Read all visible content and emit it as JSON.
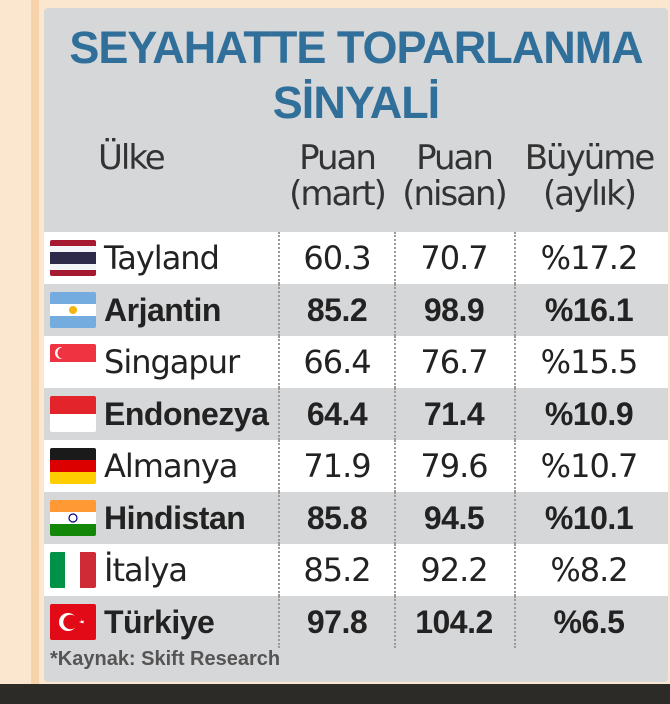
{
  "title_line1": "SEYAHATTE TOPARLANMA",
  "title_line2": "SİNYALİ",
  "headers": {
    "country": "Ülke",
    "col1_line1": "Puan",
    "col1_line2": "(mart)",
    "col2_line1": "Puan",
    "col2_line2": "(nisan)",
    "col3_line1": "Büyüme",
    "col3_line2": "(aylık)"
  },
  "source": "*Kaynak: Skift Research",
  "colors": {
    "title": "#2f6f99",
    "card": "#d6d7d9",
    "row_white": "#ffffff",
    "background": "#fbe7cf"
  },
  "chart_data": {
    "type": "table",
    "title": "SEYAHATTE TOPARLANMA SİNYALİ",
    "columns": [
      "Ülke",
      "Puan (mart)",
      "Puan (nisan)",
      "Büyüme (aylık)"
    ],
    "rows": [
      {
        "country": "Tayland",
        "flag": "thailand-flag",
        "march": "60.3",
        "april": "70.7",
        "growth": "%17.2",
        "bold": false
      },
      {
        "country": "Arjantin",
        "flag": "argentina-flag",
        "march": "85.2",
        "april": "98.9",
        "growth": "%16.1",
        "bold": true
      },
      {
        "country": "Singapur",
        "flag": "singapore-flag",
        "march": "66.4",
        "april": "76.7",
        "growth": "%15.5",
        "bold": false
      },
      {
        "country": "Endonezya",
        "flag": "indonesia-flag",
        "march": "64.4",
        "april": "71.4",
        "growth": "%10.9",
        "bold": true
      },
      {
        "country": "Almanya",
        "flag": "germany-flag",
        "march": "71.9",
        "april": "79.6",
        "growth": "%10.7",
        "bold": false
      },
      {
        "country": "Hindistan",
        "flag": "india-flag",
        "march": "85.8",
        "april": "94.5",
        "growth": "%10.1",
        "bold": true
      },
      {
        "country": "İtalya",
        "flag": "italy-flag",
        "march": "85.2",
        "april": "92.2",
        "growth": "%8.2",
        "bold": false
      },
      {
        "country": "Türkiye",
        "flag": "turkey-flag",
        "march": "97.8",
        "april": "104.2",
        "growth": "%6.5",
        "bold": true
      }
    ]
  }
}
